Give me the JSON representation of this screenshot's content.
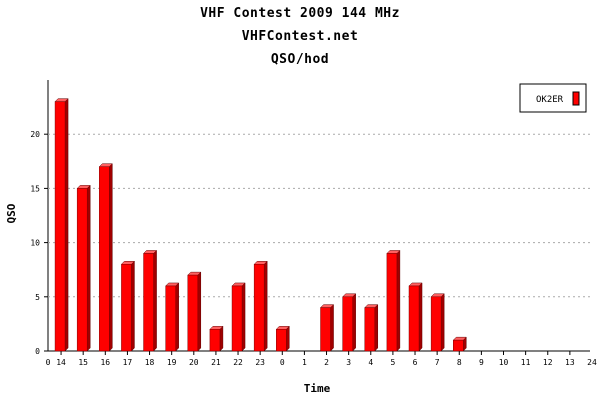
{
  "chart_data": {
    "type": "bar",
    "title": "VHF Contest 2009 144 MHz",
    "subtitle": "VHFContest.net",
    "subtitle2": "QSO/hod",
    "xlabel": "Time",
    "ylabel": "QSO",
    "categories": [
      "14",
      "15",
      "16",
      "17",
      "18",
      "19",
      "20",
      "21",
      "22",
      "23",
      "0",
      "1",
      "2",
      "3",
      "4",
      "5",
      "6",
      "7",
      "8",
      "9",
      "10",
      "11",
      "12",
      "13"
    ],
    "x_axis_start_label": "0",
    "x_axis_end_label": "24",
    "ylim": [
      0,
      25
    ],
    "yticks": [
      0,
      5,
      10,
      15,
      20
    ],
    "grid": true,
    "legend_position": "top-right",
    "series": [
      {
        "name": "OK2ER",
        "color": "#ff0000",
        "values": [
          23,
          15,
          17,
          8,
          9,
          6,
          7,
          2,
          6,
          8,
          2,
          0,
          4,
          5,
          4,
          9,
          6,
          5,
          1,
          0,
          0,
          0,
          0,
          0
        ]
      }
    ]
  }
}
